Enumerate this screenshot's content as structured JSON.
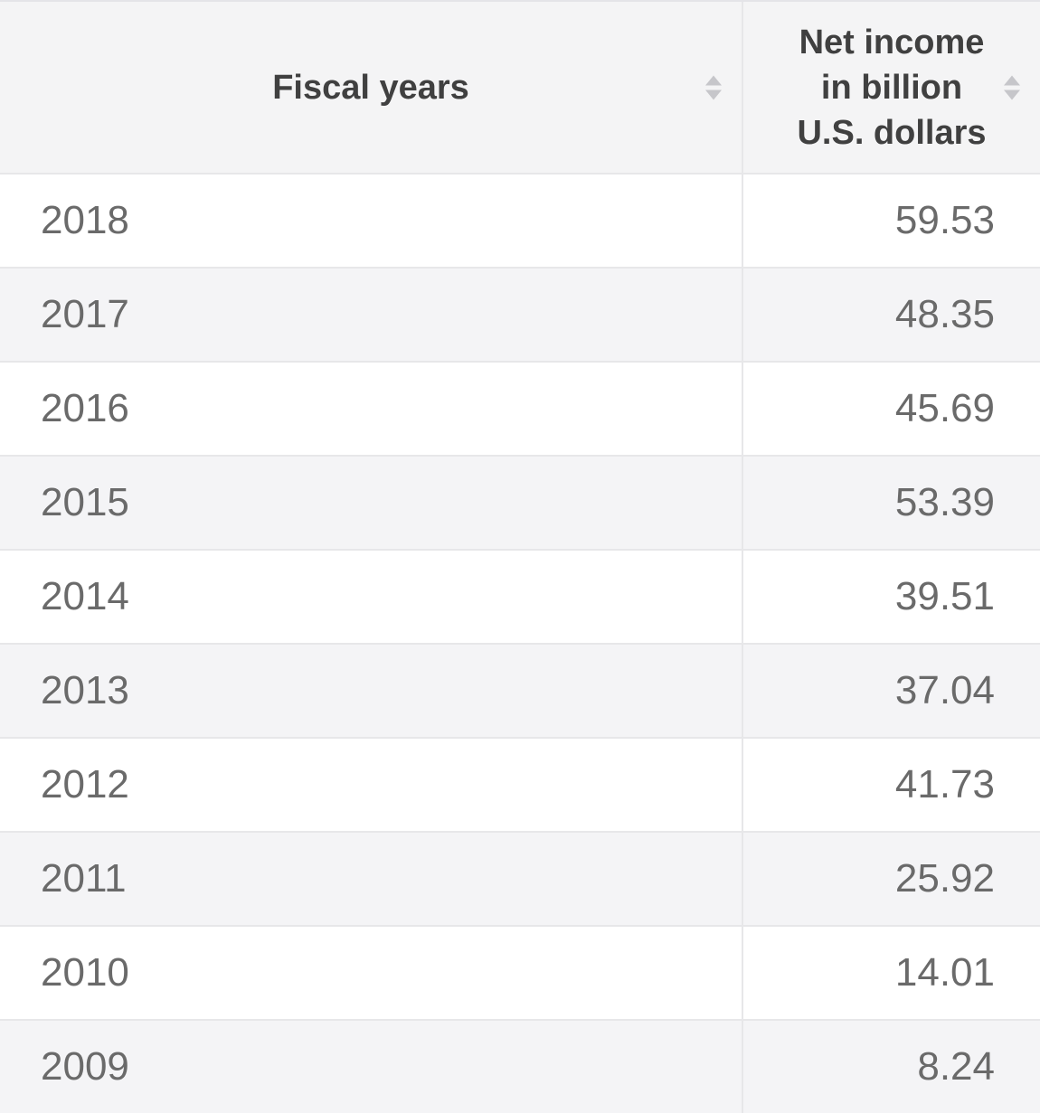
{
  "chart_data": {
    "type": "table",
    "columns": [
      "Fiscal years",
      "Net income in billion U.S. dollars"
    ],
    "categories": [
      "2018",
      "2017",
      "2016",
      "2015",
      "2014",
      "2013",
      "2012",
      "2011",
      "2010",
      "2009"
    ],
    "values": [
      59.53,
      48.35,
      45.69,
      53.39,
      39.51,
      37.04,
      41.73,
      25.92,
      14.01,
      8.24
    ]
  },
  "table": {
    "columns": [
      {
        "label": "Fiscal years",
        "lines": [
          "Fiscal years"
        ],
        "sort_icon": "sort-up-down-arrows"
      },
      {
        "label": "Net income in billion U.S. dollars",
        "lines": [
          "Net income",
          "in billion",
          "U.S. dollars"
        ],
        "sort_icon": "sort-up-down-arrows"
      }
    ],
    "rows": [
      {
        "year": "2018",
        "value": "59.53"
      },
      {
        "year": "2017",
        "value": "48.35"
      },
      {
        "year": "2016",
        "value": "45.69"
      },
      {
        "year": "2015",
        "value": "53.39"
      },
      {
        "year": "2014",
        "value": "39.51"
      },
      {
        "year": "2013",
        "value": "37.04"
      },
      {
        "year": "2012",
        "value": "41.73"
      },
      {
        "year": "2011",
        "value": "25.92"
      },
      {
        "year": "2010",
        "value": "14.01"
      },
      {
        "year": "2009",
        "value": "8.24"
      }
    ]
  },
  "colors": {
    "header_bg": "#f4f4f5",
    "header_text": "#404040",
    "body_text": "#6a6a6a",
    "zebra_row_bg": "#f4f4f6",
    "border": "#e7e7e9",
    "sort_icon": "#c6c6ca"
  }
}
